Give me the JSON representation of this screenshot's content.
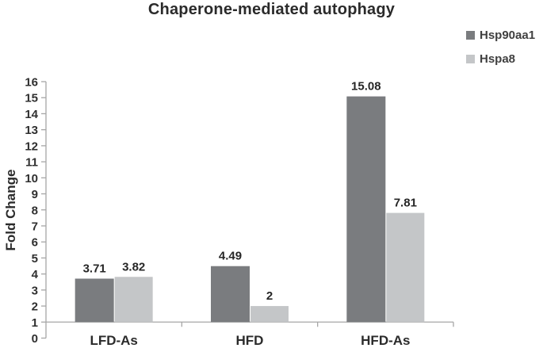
{
  "chart_data": {
    "type": "bar",
    "title": "Chaperone-mediated autophagy",
    "ylabel": "Fold Change",
    "xlabel": "",
    "categories": [
      "LFD-As",
      "HFD",
      "HFD-As"
    ],
    "series": [
      {
        "name": "Hsp90aa1",
        "color": "#7a7c7f",
        "values": [
          3.71,
          4.49,
          15.08
        ],
        "labels": [
          "3.71",
          "4.49",
          "15.08"
        ]
      },
      {
        "name": "Hspa8",
        "color": "#c4c6c8",
        "values": [
          3.82,
          2.0,
          7.81
        ],
        "labels": [
          "3.82",
          "2",
          "7.81"
        ]
      }
    ],
    "ylim": [
      0,
      16
    ],
    "ytick_step": 1,
    "axis_crosses_at": 1,
    "grid": false,
    "legend_position": "top-right"
  },
  "colors": {
    "axis": "#a6a6a6",
    "text": "#2b2b2b"
  }
}
